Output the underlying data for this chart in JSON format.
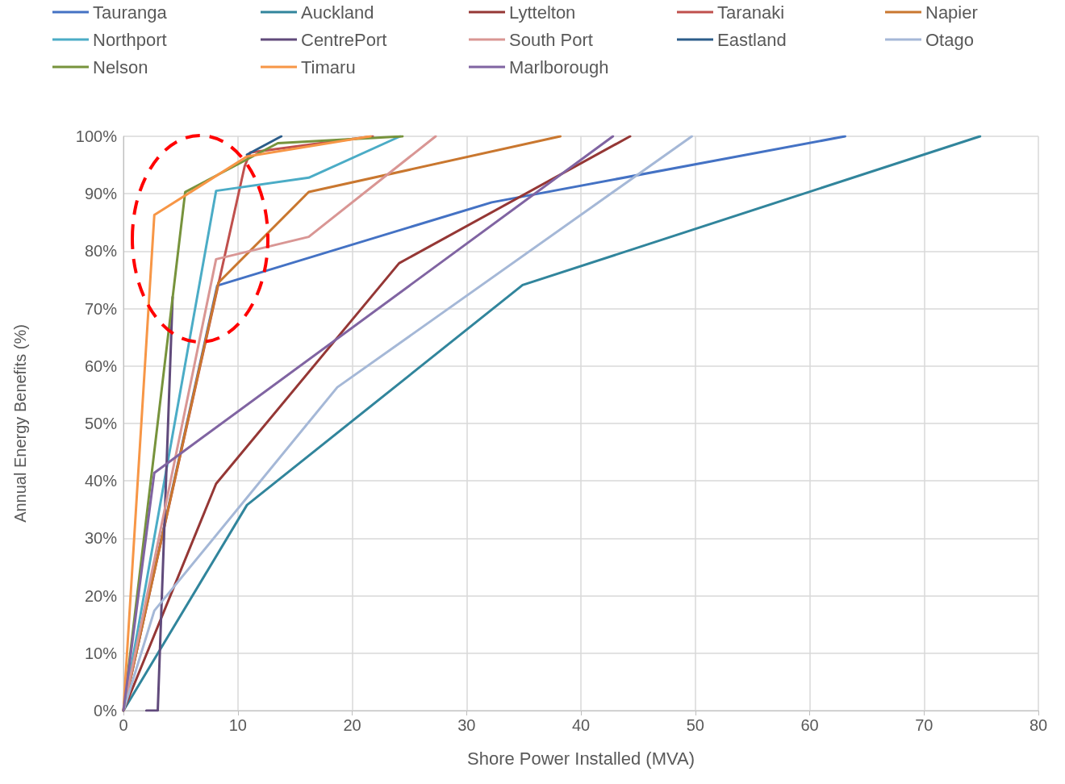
{
  "chart_data": {
    "type": "line",
    "xlabel": "Shore Power Installed (MVA)",
    "ylabel": "Annual Energy Benefits (%)",
    "xlim": [
      0,
      80
    ],
    "xticks": [
      0,
      10,
      20,
      30,
      40,
      50,
      60,
      70,
      80
    ],
    "ylim": [
      0,
      100
    ],
    "yticks": [
      {
        "value": 0,
        "label": "0%"
      },
      {
        "value": 10,
        "label": "10%"
      },
      {
        "value": 20,
        "label": "20%"
      },
      {
        "value": 30,
        "label": "30%"
      },
      {
        "value": 40,
        "label": "40%"
      },
      {
        "value": 50,
        "label": "50%"
      },
      {
        "value": 60,
        "label": "60%"
      },
      {
        "value": 70,
        "label": "70%"
      },
      {
        "value": 80,
        "label": "80%"
      },
      {
        "value": 90,
        "label": "90%"
      },
      {
        "value": 100,
        "label": "100%"
      }
    ],
    "grid": true,
    "legend": "top",
    "marker": "none",
    "line_style": "solid",
    "series": [
      {
        "name": "Tauranga",
        "color": "#4472c4",
        "x": [
          0,
          8.2,
          32.2,
          63.1
        ],
        "values": [
          0,
          74,
          88.5,
          100
        ]
      },
      {
        "name": "Auckland",
        "color": "#31859c",
        "x": [
          0,
          10.8,
          34.9,
          74.9
        ],
        "values": [
          0,
          35.8,
          74.1,
          100
        ]
      },
      {
        "name": "Lyttelton",
        "color": "#953735",
        "x": [
          0,
          8.1,
          24.1,
          44.3
        ],
        "values": [
          0,
          39.5,
          77.9,
          100
        ]
      },
      {
        "name": "Taranaki",
        "color": "#c0504d",
        "x": [
          0,
          10.6,
          11.1,
          21.8
        ],
        "values": [
          0,
          94.8,
          97.2,
          100
        ]
      },
      {
        "name": "Napier",
        "color": "#c9772f",
        "x": [
          0,
          8.3,
          16.2,
          38.2
        ],
        "values": [
          0,
          74.5,
          90.3,
          100
        ]
      },
      {
        "name": "Northport",
        "color": "#4bacc6",
        "x": [
          0,
          8.1,
          16.2,
          24.2
        ],
        "values": [
          0,
          90.5,
          92.8,
          100
        ]
      },
      {
        "name": "CentrePort",
        "color": "#604a7b",
        "x": [
          2,
          3,
          4.3
        ],
        "values": [
          0,
          0,
          72
        ]
      },
      {
        "name": "South Port",
        "color": "#d99694",
        "x": [
          0,
          8.1,
          16.2,
          27.3
        ],
        "values": [
          0,
          78.6,
          82.5,
          100
        ]
      },
      {
        "name": "Eastland",
        "color": "#2c5d8a",
        "x": [
          10.8,
          13.8
        ],
        "values": [
          96.8,
          100
        ]
      },
      {
        "name": "Otago",
        "color": "#a5b8d7",
        "x": [
          0,
          2.7,
          18.7,
          49.7
        ],
        "values": [
          0,
          17.4,
          56.3,
          100
        ]
      },
      {
        "name": "Nelson",
        "color": "#77933c",
        "x": [
          0,
          5.4,
          13.5,
          24.4
        ],
        "values": [
          0,
          90.3,
          98.8,
          100
        ]
      },
      {
        "name": "Timaru",
        "color": "#f79646",
        "x": [
          0,
          2.7,
          10.8,
          21.6
        ],
        "values": [
          0,
          86.3,
          96.5,
          100
        ]
      },
      {
        "name": "Marlborough",
        "color": "#8064a2",
        "x": [
          0,
          2.7,
          42.8
        ],
        "values": [
          0,
          41.4,
          100
        ]
      }
    ]
  }
}
